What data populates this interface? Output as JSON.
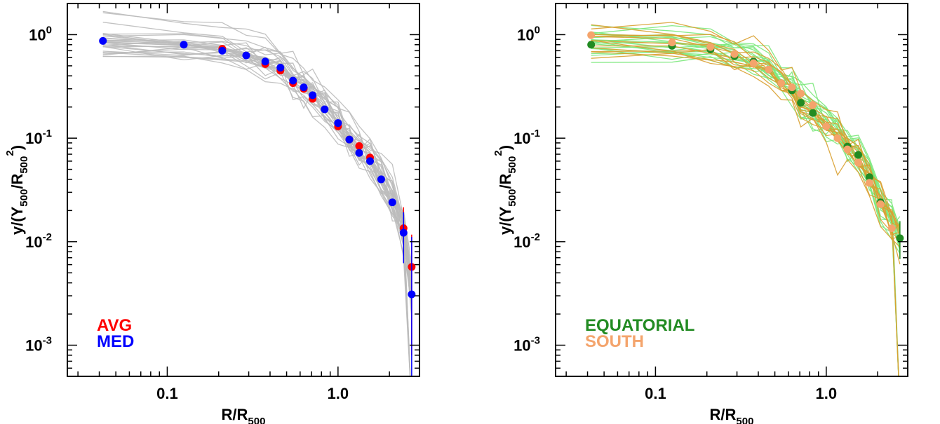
{
  "chart_data": [
    {
      "type": "line",
      "xscale": "log",
      "yscale": "log",
      "xlim": [
        0.026,
        3.0
      ],
      "ylim": [
        0.0005,
        2.0
      ],
      "xticklabels": [
        {
          "value": 0.1,
          "label": "0.1"
        },
        {
          "value": 1.0,
          "label": "1.0"
        }
      ],
      "yticklabels": [
        {
          "value": 1,
          "base": "10",
          "exp": "0"
        },
        {
          "value": 0.1,
          "base": "10",
          "exp": "-1"
        },
        {
          "value": 0.01,
          "base": "10",
          "exp": "-2"
        },
        {
          "value": 0.001,
          "base": "10",
          "exp": "-3"
        }
      ],
      "xlabel": {
        "main": "R/R",
        "sub": "500"
      },
      "ylabel": {
        "a": "y/(Y",
        "b": "500",
        "c": "/R",
        "d": "500",
        "e": "2",
        "f": ")"
      },
      "background_color": "#bbbbbb",
      "background_profile_count": 30,
      "x_nodes": [
        0.042,
        0.125,
        0.21,
        0.29,
        0.375,
        0.46,
        0.545,
        0.63,
        0.71,
        0.835,
        1.0,
        1.165,
        1.33,
        1.54,
        1.79,
        2.08,
        2.42,
        2.7
      ],
      "series": [
        {
          "name": "AVG",
          "color": "#ff0000",
          "x": [
            0.21,
            0.375,
            0.46,
            0.545,
            0.63,
            0.71,
            1.0,
            1.165,
            1.33,
            1.54,
            2.42,
            2.7
          ],
          "y": [
            0.73,
            0.52,
            0.45,
            0.34,
            0.3,
            0.24,
            0.13,
            0.097,
            0.084,
            0.065,
            0.0135,
            0.0057
          ],
          "yerr_low": [
            0,
            0,
            0,
            0,
            0,
            0,
            0,
            0,
            0,
            0,
            0.007,
            0.0049
          ],
          "yerr_high": [
            0,
            0,
            0,
            0,
            0,
            0,
            0,
            0,
            0,
            0,
            0.008,
            0.006
          ]
        },
        {
          "name": "MED",
          "color": "#0000ff",
          "x": [
            0.042,
            0.125,
            0.21,
            0.29,
            0.375,
            0.46,
            0.545,
            0.63,
            0.71,
            0.835,
            1.0,
            1.165,
            1.33,
            1.54,
            1.79,
            2.08,
            2.42,
            2.7
          ],
          "y": [
            0.87,
            0.8,
            0.7,
            0.63,
            0.55,
            0.48,
            0.36,
            0.31,
            0.26,
            0.19,
            0.14,
            0.097,
            0.072,
            0.06,
            0.04,
            0.024,
            0.0122,
            0.0031
          ],
          "yerr_low": [
            0,
            0,
            0,
            0,
            0,
            0,
            0,
            0,
            0,
            0,
            0,
            0,
            0,
            0,
            0,
            0,
            0.006,
            0.0027
          ],
          "yerr_high": [
            0,
            0,
            0,
            0,
            0,
            0,
            0,
            0,
            0,
            0,
            0,
            0,
            0,
            0,
            0,
            0,
            0.007,
            0.008
          ]
        }
      ],
      "legend": [
        {
          "text": "AVG",
          "color": "#ff0000"
        },
        {
          "text": "MED",
          "color": "#0000ff"
        }
      ],
      "legend_position": "bottom-left"
    },
    {
      "type": "line",
      "xscale": "log",
      "yscale": "log",
      "xlim": [
        0.026,
        3.0
      ],
      "ylim": [
        0.0005,
        2.0
      ],
      "xticklabels": [
        {
          "value": 0.1,
          "label": "0.1"
        },
        {
          "value": 1.0,
          "label": "1.0"
        }
      ],
      "yticklabels": [
        {
          "value": 1,
          "base": "10",
          "exp": "0"
        },
        {
          "value": 0.1,
          "base": "10",
          "exp": "-1"
        },
        {
          "value": 0.01,
          "base": "10",
          "exp": "-2"
        },
        {
          "value": 0.001,
          "base": "10",
          "exp": "-3"
        }
      ],
      "xlabel": {
        "main": "R/R",
        "sub": "500"
      },
      "ylabel": {
        "a": "y/(Y",
        "b": "500",
        "c": "/R",
        "d": "500",
        "e": "2",
        "f": ")"
      },
      "background_profile_groups": [
        {
          "color": "#7be87b",
          "count": 18
        },
        {
          "color": "#d9a030",
          "count": 12
        }
      ],
      "x_nodes": [
        0.042,
        0.125,
        0.21,
        0.29,
        0.375,
        0.46,
        0.545,
        0.63,
        0.71,
        0.835,
        1.0,
        1.165,
        1.33,
        1.54,
        1.79,
        2.08,
        2.42,
        2.7
      ],
      "series": [
        {
          "name": "EQUATORIAL",
          "color": "#228b22",
          "x": [
            0.042,
            0.125,
            0.21,
            0.29,
            0.375,
            0.46,
            0.545,
            0.63,
            0.71,
            0.835,
            1.0,
            1.33,
            1.54,
            1.79,
            2.08,
            2.7
          ],
          "y": [
            0.8,
            0.78,
            0.72,
            0.62,
            0.55,
            0.46,
            0.34,
            0.29,
            0.22,
            0.175,
            0.13,
            0.083,
            0.069,
            0.042,
            0.024,
            0.0108
          ],
          "yerr_low": [
            0,
            0,
            0,
            0,
            0,
            0,
            0,
            0,
            0,
            0,
            0,
            0,
            0,
            0,
            0,
            0.004
          ],
          "yerr_high": [
            0,
            0,
            0,
            0,
            0,
            0,
            0,
            0,
            0,
            0,
            0,
            0,
            0,
            0,
            0,
            0.005
          ]
        },
        {
          "name": "SOUTH",
          "color": "#f4a46c",
          "x": [
            0.042,
            0.125,
            0.21,
            0.29,
            0.375,
            0.46,
            0.545,
            0.63,
            0.71,
            0.835,
            1.0,
            1.165,
            1.33,
            1.54,
            1.79,
            2.08,
            2.42
          ],
          "y": [
            0.99,
            0.84,
            0.76,
            0.65,
            0.53,
            0.46,
            0.34,
            0.31,
            0.27,
            0.21,
            0.13,
            0.1,
            0.078,
            0.058,
            0.037,
            0.023,
            0.0135
          ],
          "yerr_low": [
            0,
            0,
            0,
            0,
            0,
            0,
            0,
            0,
            0,
            0,
            0,
            0,
            0,
            0,
            0,
            0,
            0
          ],
          "yerr_high": [
            0,
            0,
            0,
            0,
            0,
            0,
            0,
            0,
            0,
            0,
            0,
            0,
            0,
            0,
            0,
            0,
            0
          ]
        }
      ],
      "legend": [
        {
          "text": "EQUATORIAL",
          "color": "#228b22"
        },
        {
          "text": "SOUTH",
          "color": "#f4a46c"
        }
      ],
      "legend_position": "bottom-left"
    }
  ]
}
